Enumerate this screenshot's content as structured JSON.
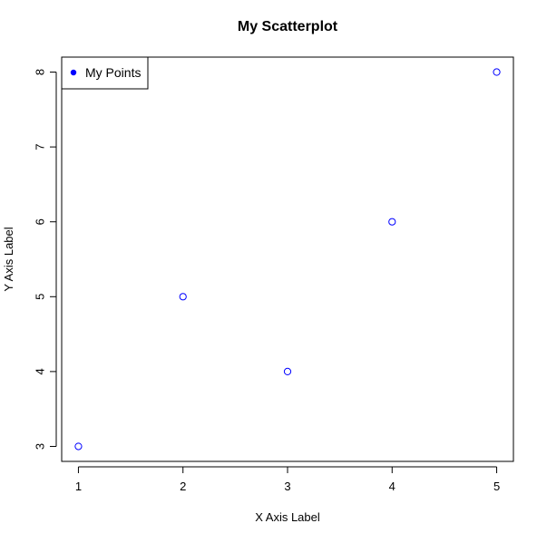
{
  "chart_data": {
    "type": "scatter",
    "title": "My Scatterplot",
    "xlabel": "X Axis Label",
    "ylabel": "Y Axis Label",
    "xlim": [
      0.84,
      5.16
    ],
    "ylim": [
      2.8,
      8.2
    ],
    "x_ticks": [
      "1",
      "2",
      "3",
      "4",
      "5"
    ],
    "y_ticks": [
      "3",
      "4",
      "5",
      "6",
      "7",
      "8"
    ],
    "grid": false,
    "legend_position": "top-left",
    "series": [
      {
        "name": "My Points",
        "color": "#0000ff",
        "marker": "open-circle",
        "x": [
          1,
          2,
          3,
          4,
          5
        ],
        "y": [
          3,
          5,
          4,
          6,
          8
        ]
      }
    ]
  }
}
